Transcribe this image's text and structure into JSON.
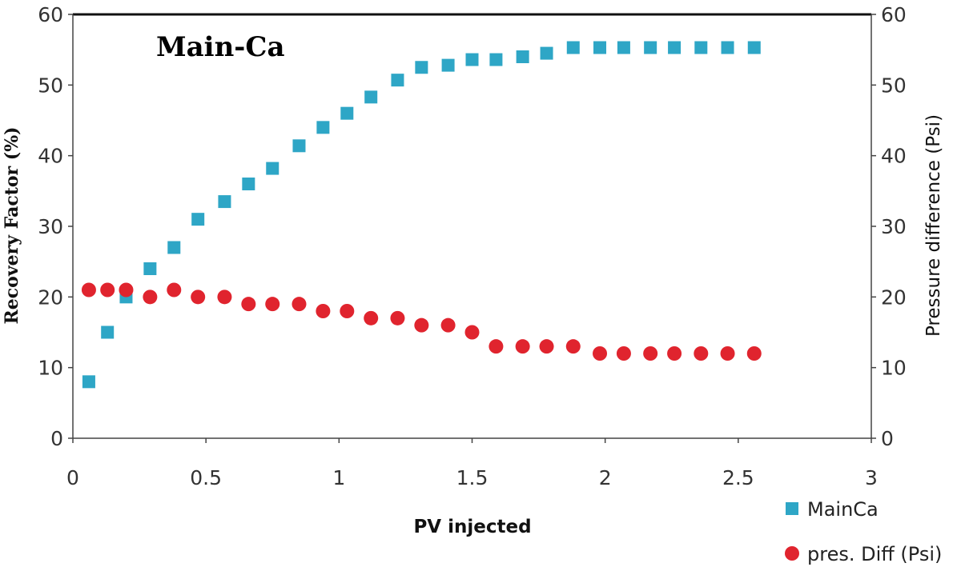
{
  "chart_data": {
    "type": "scatter",
    "title": "Main-Ca",
    "xlabel": "PV injected",
    "ylabel": "Recovery Factor (%)",
    "ylabel_right": "Pressure difference (Psi)",
    "xlim": [
      0,
      3
    ],
    "ylim": [
      0,
      60
    ],
    "ylim_right": [
      0,
      60
    ],
    "x_ticks": [
      "0",
      "0.5",
      "1",
      "1.5",
      "2",
      "2.5",
      "3"
    ],
    "y_ticks": [
      "0",
      "10",
      "20",
      "30",
      "40",
      "50",
      "60"
    ],
    "y_ticks_right": [
      "0",
      "10",
      "20",
      "30",
      "40",
      "50",
      "60"
    ],
    "grid": false,
    "legend_position": "bottom-right",
    "series": [
      {
        "name": "MainCa",
        "marker": "square",
        "color": "#2EA6C6",
        "axis": "left",
        "x": [
          0.06,
          0.13,
          0.2,
          0.29,
          0.38,
          0.47,
          0.57,
          0.66,
          0.75,
          0.85,
          0.94,
          1.03,
          1.12,
          1.22,
          1.31,
          1.41,
          1.5,
          1.59,
          1.69,
          1.78,
          1.88,
          1.98,
          2.07,
          2.17,
          2.26,
          2.36,
          2.46,
          2.56
        ],
        "y": [
          8,
          15,
          20,
          24,
          27,
          31,
          33.5,
          36,
          38.2,
          41.4,
          44,
          46,
          48.3,
          50.7,
          52.5,
          52.8,
          53.6,
          53.6,
          54,
          54.5,
          55.3,
          55.3,
          55.3,
          55.3,
          55.3,
          55.3,
          55.3,
          55.3
        ]
      },
      {
        "name": "pres. Diff (Psi)",
        "marker": "circle",
        "color": "#E0242E",
        "axis": "right",
        "x": [
          0.06,
          0.13,
          0.2,
          0.29,
          0.38,
          0.47,
          0.57,
          0.66,
          0.75,
          0.85,
          0.94,
          1.03,
          1.12,
          1.22,
          1.31,
          1.41,
          1.5,
          1.59,
          1.69,
          1.78,
          1.88,
          1.98,
          2.07,
          2.17,
          2.26,
          2.36,
          2.46,
          2.56
        ],
        "y": [
          21,
          21,
          21,
          20,
          21,
          20,
          20,
          19,
          19,
          19,
          18,
          18,
          17,
          17,
          16,
          16,
          15,
          13,
          13,
          13,
          13,
          12,
          12,
          12,
          12,
          12,
          12,
          12
        ]
      }
    ]
  }
}
